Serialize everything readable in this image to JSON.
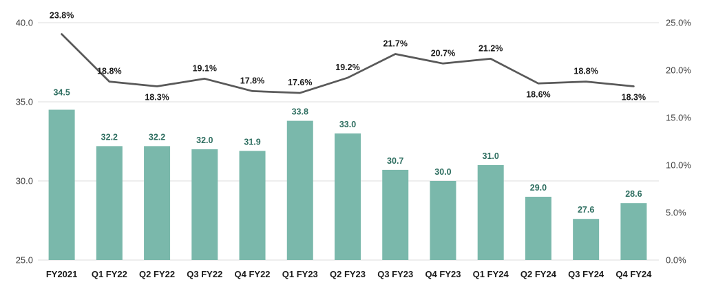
{
  "chart_data": {
    "type": "combo",
    "categories": [
      "FY2021",
      "Q1 FY22",
      "Q2 FY22",
      "Q3 FY22",
      "Q4 FY22",
      "Q1 FY23",
      "Q2 FY23",
      "Q3 FY23",
      "Q4 FY23",
      "Q1 FY24",
      "Q2 FY24",
      "Q3 FY24",
      "Q4 FY24"
    ],
    "series": [
      {
        "name": "bar-series",
        "type": "bar",
        "axis": "left",
        "values": [
          34.5,
          32.2,
          32.2,
          32.0,
          31.9,
          33.8,
          33.0,
          30.7,
          30.0,
          31.0,
          29.0,
          27.6,
          28.6
        ],
        "labels": [
          "34.5",
          "32.2",
          "32.2",
          "32.0",
          "31.9",
          "33.8",
          "33.0",
          "30.7",
          "30.0",
          "31.0",
          "29.0",
          "27.6",
          "28.6"
        ],
        "color": "#7ab8ab",
        "label_color": "#2e6e60"
      },
      {
        "name": "line-series",
        "type": "line",
        "axis": "right",
        "values": [
          23.8,
          18.8,
          18.3,
          19.1,
          17.8,
          17.6,
          19.2,
          21.7,
          20.7,
          21.2,
          18.6,
          18.8,
          18.3
        ],
        "labels": [
          "23.8%",
          "18.8%",
          "18.3%",
          "19.1%",
          "17.8%",
          "17.6%",
          "19.2%",
          "21.7%",
          "20.7%",
          "21.2%",
          "18.6%",
          "18.8%",
          "18.3%"
        ],
        "label_placement": [
          "above-far",
          "above",
          "below",
          "above",
          "above",
          "above",
          "above",
          "above",
          "above",
          "above",
          "below",
          "above",
          "below"
        ],
        "color": "#595959",
        "label_color": "#1a1a1a"
      }
    ],
    "left_axis": {
      "min": 25,
      "max": 40,
      "ticks": [
        "40.0",
        "35.0",
        "30.0",
        "25.0"
      ],
      "tick_values": [
        40,
        35,
        30,
        25
      ],
      "color": "#404040"
    },
    "right_axis": {
      "min": 0,
      "max": 25,
      "ticks": [
        "25.0%",
        "20.0%",
        "15.0%",
        "10.0%",
        "5.0%",
        "0.0%"
      ],
      "tick_values": [
        25,
        20,
        15,
        10,
        5,
        0
      ],
      "color": "#404040"
    },
    "title": "",
    "xlabel": "",
    "ylabel": "",
    "grid": true,
    "gridline_color": "#dddddd",
    "legend": "none",
    "category_label_color": "#1a1a1a"
  }
}
